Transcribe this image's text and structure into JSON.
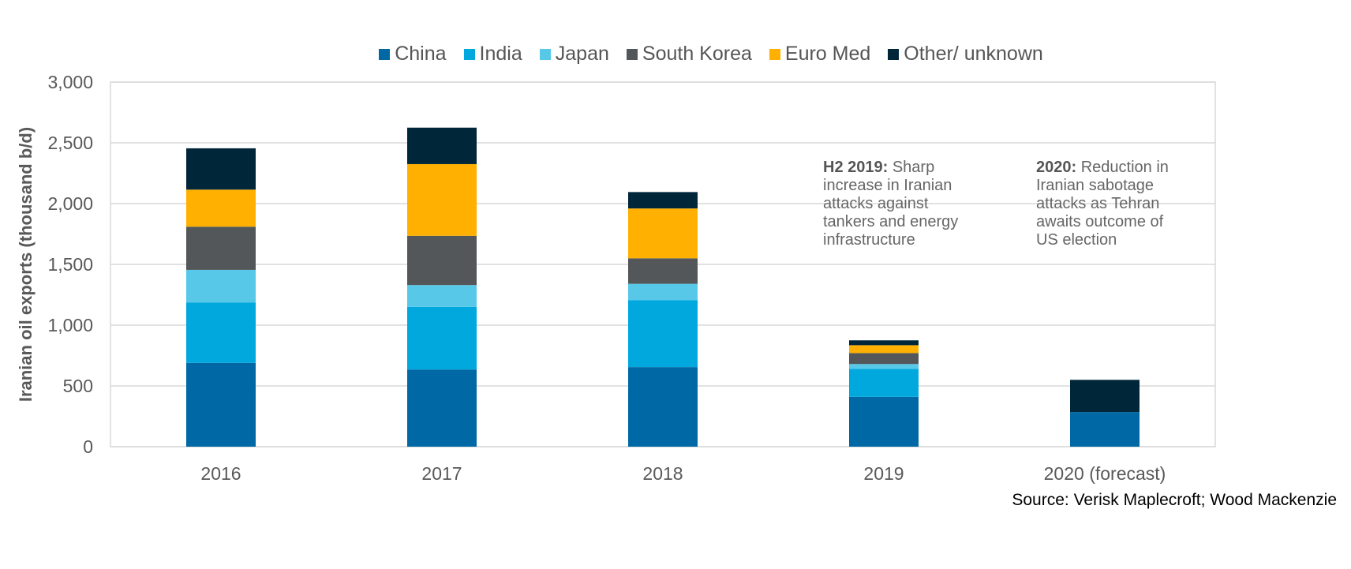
{
  "chart_data": {
    "type": "bar",
    "stacked": true,
    "title": "",
    "xlabel": "",
    "ylabel": "Iranian oil exports (thousand b/d)",
    "ylim": [
      0,
      3000
    ],
    "yticks": [
      0,
      500,
      1000,
      1500,
      2000,
      2500,
      3000
    ],
    "ytick_labels": [
      "0",
      "500",
      "1,000",
      "1,500",
      "2,000",
      "2,500",
      "3,000"
    ],
    "grid": true,
    "legend_position": "top",
    "categories": [
      "2016",
      "2017",
      "2018",
      "2019",
      "2020 (forecast)"
    ],
    "series": [
      {
        "name": "China",
        "color": "#0068A5",
        "values": [
          690,
          635,
          655,
          410,
          285
        ]
      },
      {
        "name": "India",
        "color": "#00A8DE",
        "values": [
          495,
          515,
          550,
          230,
          0
        ]
      },
      {
        "name": "Japan",
        "color": "#57C8E8",
        "values": [
          270,
          180,
          135,
          40,
          0
        ]
      },
      {
        "name": "South Korea",
        "color": "#53575A",
        "values": [
          355,
          405,
          210,
          90,
          0
        ]
      },
      {
        "name": "Euro Med",
        "color": "#FFB000",
        "values": [
          305,
          590,
          410,
          65,
          0
        ]
      },
      {
        "name": "Other/ unknown",
        "color": "#00263A",
        "values": [
          340,
          300,
          135,
          40,
          265
        ]
      }
    ],
    "annotations": [
      {
        "bold": "H2 2019:",
        "text": " Sharp\nincrease in Iranian\nattacks against\ntankers and energy\ninfrastructure"
      },
      {
        "bold": "2020:",
        "text": " Reduction in\nIranian sabotage\nattacks as Tehran\nawaits outcome of\nUS election"
      }
    ],
    "source": "Source: Verisk Maplecroft; Wood Mackenzie"
  }
}
